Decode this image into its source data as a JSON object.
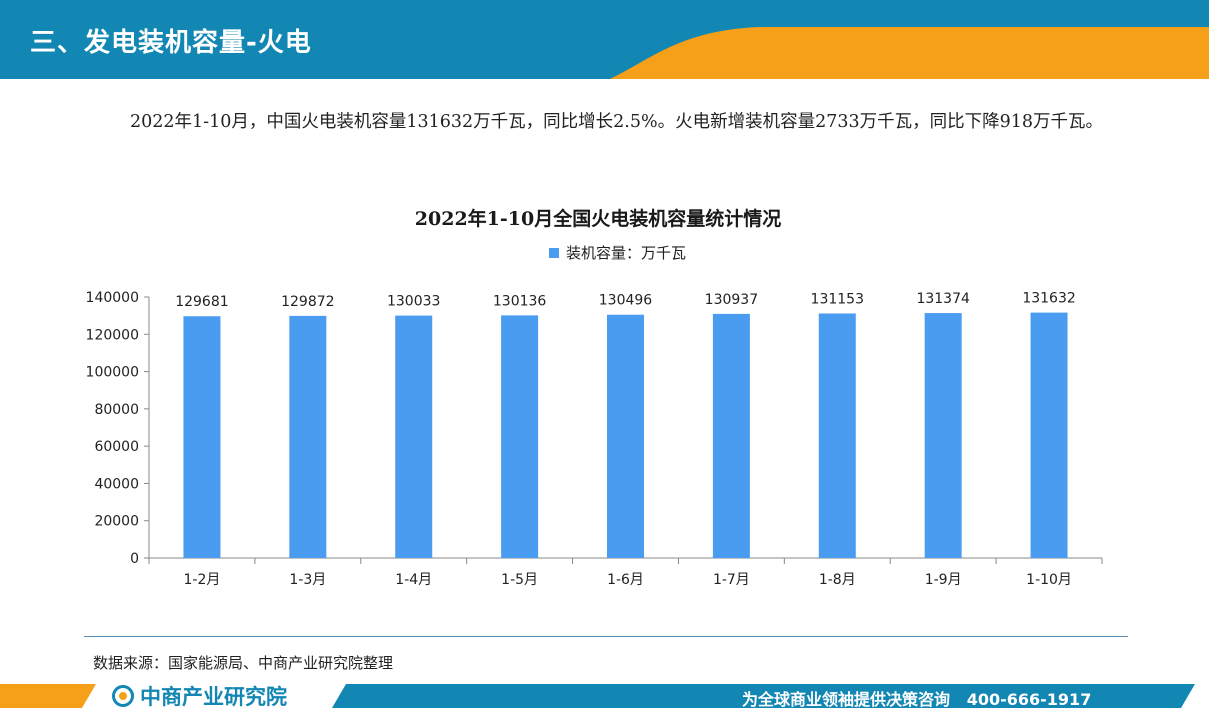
{
  "header": {
    "title": "三、发电装机容量-火电"
  },
  "paragraph": "2022年1-10月，中国火电装机容量131632万千瓦，同比增长2.5%。火电新增装机容量2733万千瓦，同比下降918万千瓦。",
  "chart_data": {
    "type": "bar",
    "title": "2022年1-10月全国火电装机容量统计情况",
    "categories": [
      "1-2月",
      "1-3月",
      "1-4月",
      "1-5月",
      "1-6月",
      "1-7月",
      "1-8月",
      "1-9月",
      "1-10月"
    ],
    "series": [
      {
        "name": "装机容量：万千瓦",
        "values": [
          129681,
          129872,
          130033,
          130136,
          130496,
          130937,
          131153,
          131374,
          131632
        ],
        "color": "#4a9cf0"
      }
    ],
    "ylim": [
      0,
      140000
    ],
    "yticks": [
      0,
      20000,
      40000,
      60000,
      80000,
      100000,
      120000,
      140000
    ],
    "grid": false,
    "legend": "top-center",
    "data_labels": true
  },
  "source": "数据来源：国家能源局、中商产业研究院整理",
  "footer": {
    "logo_text": "中商产业研究院",
    "slogan": "为全球商业领袖提供决策咨询   400-666-1917"
  },
  "colors": {
    "header_blue": "#1387b3",
    "header_orange": "#f5a018",
    "bar": "#4a9cf0"
  }
}
